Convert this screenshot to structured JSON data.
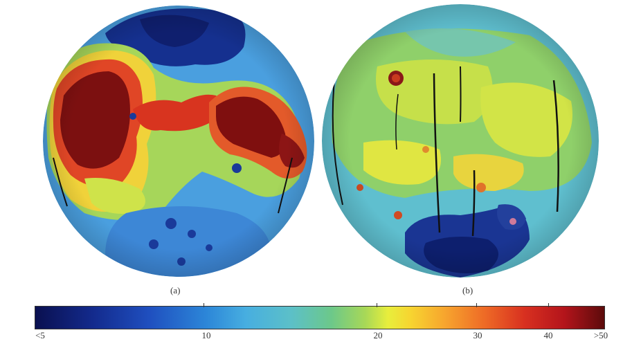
{
  "panels": [
    {
      "id": "a",
      "label": "(a)"
    },
    {
      "id": "b",
      "label": "(b)"
    }
  ],
  "colorbar": {
    "ticks": [
      {
        "label": "<5",
        "value": 5
      },
      {
        "label": "10",
        "value": 10
      },
      {
        "label": "20",
        "value": 20
      },
      {
        "label": "30",
        "value": 30
      },
      {
        "label": "40",
        "value": 40
      },
      {
        "label": ">50",
        "value": 50
      }
    ],
    "colors": [
      "#0a1050",
      "#1f4fbf",
      "#47aee0",
      "#6cc88a",
      "#e8ee3c",
      "#f7a52e",
      "#d83020",
      "#5c0b0b"
    ]
  }
}
